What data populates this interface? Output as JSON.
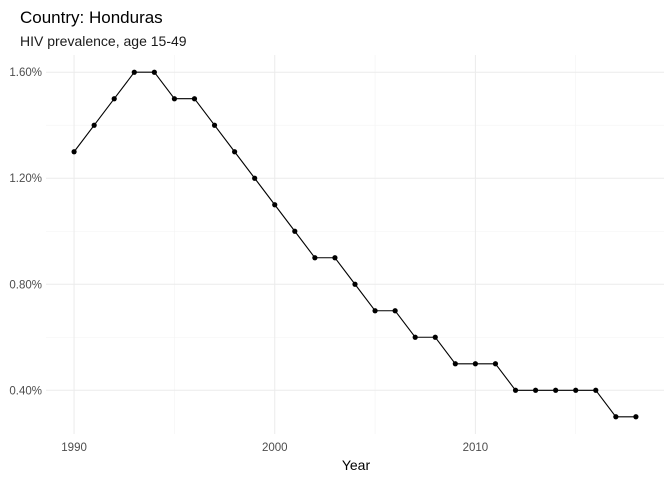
{
  "chart_data": {
    "type": "line",
    "title": "Country: Honduras",
    "subtitle": "HIV prevalence, age 15-49",
    "xlabel": "Year",
    "ylabel": "",
    "x": [
      1990,
      1991,
      1992,
      1993,
      1994,
      1995,
      1996,
      1997,
      1998,
      1999,
      2000,
      2001,
      2002,
      2003,
      2004,
      2005,
      2006,
      2007,
      2008,
      2009,
      2010,
      2011,
      2012,
      2013,
      2014,
      2015,
      2016,
      2017,
      2018
    ],
    "values": [
      1.3,
      1.4,
      1.5,
      1.6,
      1.6,
      1.5,
      1.5,
      1.4,
      1.3,
      1.2,
      1.1,
      1.0,
      0.9,
      0.9,
      0.8,
      0.7,
      0.7,
      0.6,
      0.6,
      0.5,
      0.5,
      0.5,
      0.4,
      0.4,
      0.4,
      0.4,
      0.4,
      0.3,
      0.3
    ],
    "xlim": [
      1988.6,
      2019.4
    ],
    "ylim": [
      0.235,
      1.665
    ],
    "x_ticks": [
      1990,
      2000,
      2010
    ],
    "x_tick_labels": [
      "1990",
      "2000",
      "2010"
    ],
    "y_ticks": [
      0.4,
      0.8,
      1.2,
      1.6
    ],
    "y_tick_labels": [
      "0.40%",
      "0.80%",
      "1.20%",
      "1.60%"
    ],
    "x_minor_ticks": [
      1995,
      2005,
      2015
    ],
    "y_minor_ticks": [
      0.6,
      1.0,
      1.4
    ],
    "grid": true,
    "legend": "none",
    "line_color": "#000000",
    "point_color": "#000000",
    "grid_color": "#ebebeb"
  }
}
